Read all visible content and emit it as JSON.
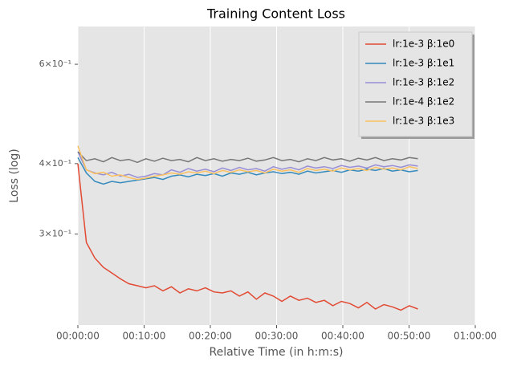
{
  "chart_data": {
    "type": "line",
    "title": "Training Content Loss",
    "x_label": "Relative Time (in h:m:s)",
    "y_label": "Loss (log)",
    "x": [
      0,
      77,
      154,
      231,
      308,
      385,
      462,
      539,
      616,
      693,
      770,
      847,
      924,
      1001,
      1078,
      1155,
      1232,
      1309,
      1386,
      1463,
      1540,
      1617,
      1694,
      1771,
      1848,
      1925,
      2002,
      2079,
      2156,
      2233,
      2310,
      2387,
      2464,
      2541,
      2618,
      2695,
      2772,
      2849,
      2926,
      3003,
      3080
    ],
    "xlim": [
      0,
      3600
    ],
    "xticks": [
      {
        "value": 0,
        "label": "00:00:00"
      },
      {
        "value": 600,
        "label": "00:10:00"
      },
      {
        "value": 1200,
        "label": "00:20:00"
      },
      {
        "value": 1800,
        "label": "00:30:00"
      },
      {
        "value": 2400,
        "label": "00:40:00"
      },
      {
        "value": 3000,
        "label": "00:50:00"
      },
      {
        "value": 3600,
        "label": "01:00:00"
      }
    ],
    "ylim": [
      0.207,
      0.7
    ],
    "log_y": true,
    "yticks": [
      {
        "value": 0.3,
        "label": "3×10⁻¹"
      },
      {
        "value": 0.4,
        "label": "4×10⁻¹"
      },
      {
        "value": 0.6,
        "label": "6×10⁻¹"
      }
    ],
    "grid": "x",
    "legend": "upper right",
    "series": [
      {
        "name": "lr:1e-3 β:1e0",
        "color": "#E24A33",
        "values": [
          0.4,
          0.29,
          0.272,
          0.262,
          0.256,
          0.25,
          0.245,
          0.243,
          0.241,
          0.243,
          0.238,
          0.242,
          0.236,
          0.24,
          0.238,
          0.241,
          0.237,
          0.236,
          0.238,
          0.233,
          0.237,
          0.23,
          0.236,
          0.233,
          0.228,
          0.233,
          0.229,
          0.231,
          0.227,
          0.229,
          0.224,
          0.228,
          0.226,
          0.222,
          0.227,
          0.221,
          0.225,
          0.223,
          0.22,
          0.224,
          0.221
        ]
      },
      {
        "name": "lr:1e-3 β:1e1",
        "color": "#348ABD",
        "values": [
          0.41,
          0.385,
          0.372,
          0.368,
          0.372,
          0.37,
          0.372,
          0.374,
          0.376,
          0.378,
          0.375,
          0.38,
          0.382,
          0.379,
          0.383,
          0.381,
          0.384,
          0.38,
          0.385,
          0.383,
          0.386,
          0.382,
          0.385,
          0.387,
          0.384,
          0.386,
          0.383,
          0.388,
          0.385,
          0.387,
          0.389,
          0.386,
          0.39,
          0.388,
          0.391,
          0.389,
          0.392,
          0.388,
          0.39,
          0.387,
          0.389
        ]
      },
      {
        "name": "lr:1e-3 β:1e2",
        "color": "#988ED5",
        "values": [
          0.42,
          0.39,
          0.385,
          0.382,
          0.386,
          0.38,
          0.383,
          0.378,
          0.38,
          0.384,
          0.382,
          0.39,
          0.386,
          0.392,
          0.388,
          0.391,
          0.387,
          0.393,
          0.389,
          0.394,
          0.39,
          0.392,
          0.388,
          0.395,
          0.391,
          0.394,
          0.39,
          0.396,
          0.393,
          0.395,
          0.392,
          0.397,
          0.394,
          0.396,
          0.393,
          0.398,
          0.395,
          0.397,
          0.394,
          0.398,
          0.396
        ]
      },
      {
        "name": "lr:1e-4 β:1e2",
        "color": "#777777",
        "values": [
          0.42,
          0.405,
          0.408,
          0.403,
          0.41,
          0.405,
          0.407,
          0.402,
          0.408,
          0.404,
          0.409,
          0.405,
          0.407,
          0.403,
          0.41,
          0.405,
          0.408,
          0.404,
          0.407,
          0.405,
          0.409,
          0.404,
          0.406,
          0.41,
          0.405,
          0.407,
          0.403,
          0.408,
          0.405,
          0.41,
          0.406,
          0.408,
          0.404,
          0.409,
          0.406,
          0.41,
          0.405,
          0.408,
          0.406,
          0.41,
          0.408
        ]
      },
      {
        "name": "lr:1e-3 β:1e3",
        "color": "#FBC15E",
        "values": [
          0.43,
          0.39,
          0.384,
          0.386,
          0.38,
          0.382,
          0.378,
          0.375,
          0.377,
          0.38,
          0.382,
          0.385,
          0.383,
          0.387,
          0.385,
          0.388,
          0.384,
          0.389,
          0.386,
          0.39,
          0.387,
          0.389,
          0.385,
          0.391,
          0.388,
          0.39,
          0.386,
          0.392,
          0.389,
          0.391,
          0.388,
          0.393,
          0.39,
          0.392,
          0.389,
          0.394,
          0.391,
          0.393,
          0.39,
          0.395,
          0.392
        ]
      }
    ]
  }
}
